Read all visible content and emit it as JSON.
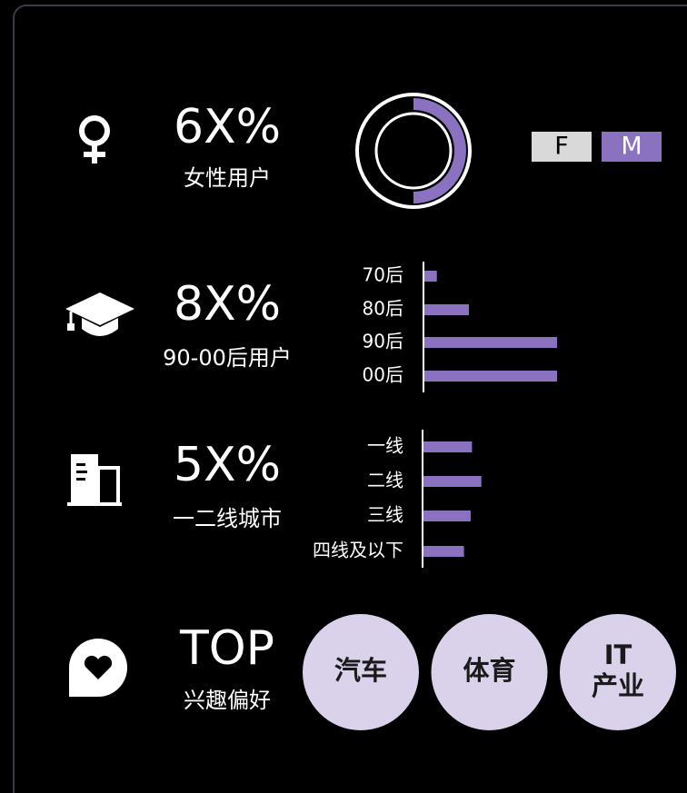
{
  "rows": [
    {
      "value": "6X%",
      "label": "女性用户"
    },
    {
      "value": "8X%",
      "label": "90-00后用户"
    },
    {
      "value": "5X%",
      "label": "一二线城市"
    },
    {
      "value": "TOP",
      "label": "兴趣偏好"
    }
  ],
  "interests": [
    [
      "汽车"
    ],
    [
      "体育"
    ],
    [
      "IT",
      "产业"
    ]
  ],
  "chart_data": [
    {
      "type": "pie",
      "categories": [
        "F",
        "M"
      ],
      "values": [
        50,
        50
      ],
      "colors": [
        "#d9d9d9",
        "#8a72c0"
      ]
    },
    {
      "type": "bar",
      "categories": [
        "70后",
        "80后",
        "90后",
        "00后"
      ],
      "values": [
        10,
        34,
        100,
        100
      ],
      "xlim": [
        0,
        100
      ],
      "color": "#8a72c0"
    },
    {
      "type": "bar",
      "categories": [
        "一线",
        "二线",
        "三线",
        "四线及以下"
      ],
      "values": [
        37,
        44,
        36,
        31
      ],
      "xlim": [
        0,
        100
      ],
      "color": "#8a72c0"
    }
  ]
}
